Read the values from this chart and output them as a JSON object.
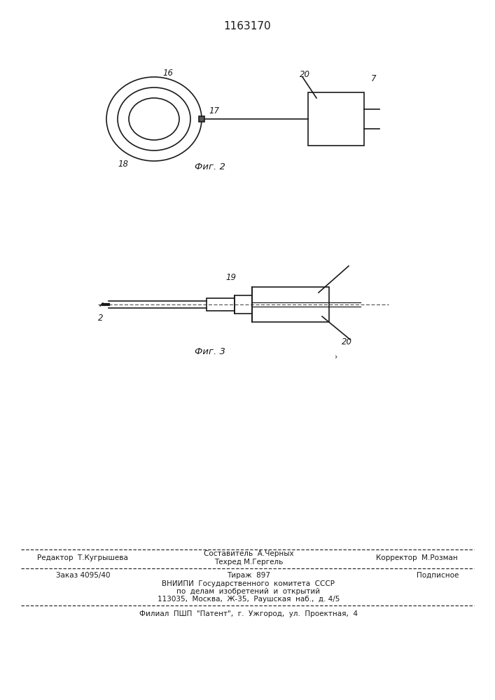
{
  "title": "1163170",
  "fig2_caption": "Фиг. 2",
  "fig3_caption": "Фиг. 3",
  "bg_color": "#ffffff",
  "line_color": "#1a1a1a",
  "label_16": "16",
  "label_17": "17",
  "label_18": "18",
  "label_20_fig2": "20",
  "label_7": "7",
  "label_2": "2",
  "label_19": "19",
  "label_20_fig3": "20",
  "footer_line1_left": "Редактор  Т.Кугрышева",
  "footer_line1_center": "Составитель  А.Черных",
  "footer_line2_center": "Техред М.Гергель",
  "footer_line1_right": "Корректор  М.Розман",
  "footer_line3_left": "Заказ 4095/40",
  "footer_line3_center": "Тираж  897",
  "footer_line3_right": "Подписное",
  "footer_line4": "ВНИИПИ  Государственного  комитета  СССР",
  "footer_line5": "по  делам  изобретений  и  открытий",
  "footer_line6": "113035,  Москва,  Ж-35,  Раушская  наб.,  д. 4/5",
  "footer_line7": "Филиал  ПШП  \"Патент\",  г.  Ужгород,  ул.  Проектная,  4"
}
